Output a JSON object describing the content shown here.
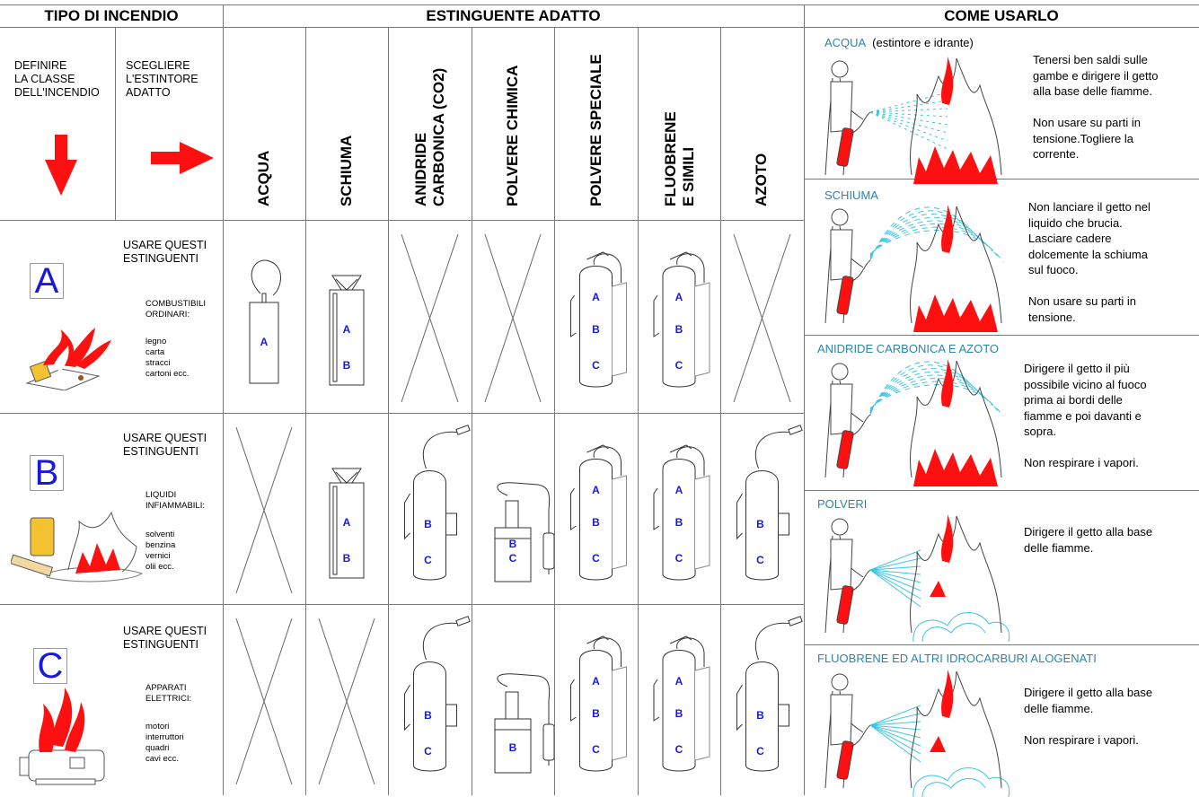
{
  "headers": {
    "tipo": "TIPO DI INCENDIO",
    "estinguente": "ESTINGUENTE ADATTO",
    "come": "COME USARLO"
  },
  "intro": {
    "definire": "DEFINIRE\nLA CLASSE\nDELL'INCENDIO",
    "scegliere": "SCEGLIERE\nL'ESTINTORE\nADATTO"
  },
  "agents": [
    "ACQUA",
    "SCHIUMA",
    "ANIDRIDE\nCARBONICA (CO2)",
    "POLVERE  CHIMICA",
    "POLVERE SPECIALE",
    "FLUOBRENE\nE SIMILI",
    "AZOTO"
  ],
  "classes": [
    {
      "letter": "A",
      "usare": "USARE QUESTI\nESTINGUENTI",
      "category": "COMBUSTIBILI\nORDINARI:",
      "items": "legno\ncarta\nstracci\ncartoni ecc.",
      "cells": [
        "A",
        "AB",
        "x",
        "x",
        "ABC",
        "ABC",
        "x"
      ]
    },
    {
      "letter": "B",
      "usare": "USARE QUESTI\nESTINGUENTI",
      "category": "LIQUIDI\nINFIAMMABILI:",
      "items": "solventi\nbenzina\nvernici\nolii ecc.",
      "cells": [
        "x",
        "AB",
        "BC",
        "BC",
        "ABC",
        "ABC",
        "BC"
      ]
    },
    {
      "letter": "C",
      "usare": "USARE QUESTI\nESTINGUENTI",
      "category": "APPARATI\nELETTRICI:",
      "items": "motori\ninterruttori\nquadri\ncavi ecc.",
      "cells": [
        "x",
        "x",
        "BC",
        "B",
        "ABC",
        "ABC",
        "BC"
      ]
    }
  ],
  "sections": [
    {
      "title": "ACQUA",
      "subtitle": "(estintore e idrante)",
      "text": "Tenersi ben saldi sulle\ngambe e dirigere il getto\nalla base delle fiamme.\n\nNon usare su parti in\ntensione.Togliere la\ncorrente."
    },
    {
      "title": "SCHIUMA",
      "subtitle": "",
      "text": "Non lanciare il getto nel\nliquido che brucia.\nLasciare cadere\ndolcemente la schiuma\nsul fuoco.\n\nNon usare su parti in\ntensione."
    },
    {
      "title": "ANIDRIDE CARBONICA E AZOTO",
      "subtitle": "",
      "text": "Dirigere il getto il più\npossibile vicino al fuoco\nprima ai bordi delle\nfiamme e poi davanti e\nsopra.\n\nNon respirare i vapori."
    },
    {
      "title": "POLVERI",
      "subtitle": "",
      "text": "Dirigere il getto alla base\ndelle fiamme."
    },
    {
      "title": "FLUOBRENE ED ALTRI IDROCARBURI ALOGENATI",
      "subtitle": "",
      "text": "Dirigere il getto alla base\ndelle fiamme.\n\nNon respirare i vapori."
    }
  ],
  "colors": {
    "flame": "#ff1010",
    "letter": "#1818e0",
    "title": "#2a86a8",
    "spray": "#3cc6e0"
  }
}
